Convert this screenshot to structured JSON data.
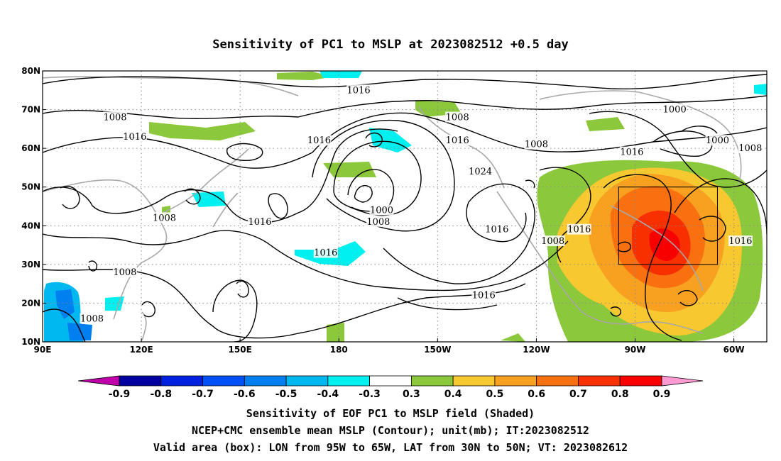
{
  "title": "Sensitivity of PC1 to MSLP at 2023082512 +0.5 day",
  "map": {
    "lon_range": [
      90,
      310
    ],
    "lat_range": [
      10,
      80
    ],
    "lat_ticks": [
      "10N",
      "20N",
      "30N",
      "40N",
      "50N",
      "60N",
      "70N",
      "80N"
    ],
    "lon_ticks": [
      "90E",
      "120E",
      "150E",
      "180",
      "150W",
      "120W",
      "90W",
      "60W"
    ],
    "grid": "dotted",
    "valid_box": {
      "lon_from": "95W",
      "lon_to": "65W",
      "lat_from": "30N",
      "lat_to": "50N"
    }
  },
  "contour_labels": [
    {
      "text": "1016",
      "lon": 186,
      "lat": 75
    },
    {
      "text": "1008",
      "lon": 112,
      "lat": 68
    },
    {
      "text": "1016",
      "lon": 118,
      "lat": 63
    },
    {
      "text": "1008",
      "lon": 216,
      "lat": 68
    },
    {
      "text": "1000",
      "lon": 282,
      "lat": 70
    },
    {
      "text": "1016",
      "lon": 174,
      "lat": 62
    },
    {
      "text": "1016",
      "lon": 216,
      "lat": 62
    },
    {
      "text": "1008",
      "lon": 240,
      "lat": 61
    },
    {
      "text": "1016",
      "lon": 269,
      "lat": 59
    },
    {
      "text": "1000",
      "lon": 295,
      "lat": 62
    },
    {
      "text": "1008",
      "lon": 305,
      "lat": 60
    },
    {
      "text": "1024",
      "lon": 223,
      "lat": 54
    },
    {
      "text": "1000",
      "lon": 193,
      "lat": 44
    },
    {
      "text": "1008",
      "lon": 192,
      "lat": 41
    },
    {
      "text": "1008",
      "lon": 127,
      "lat": 42
    },
    {
      "text": "1016",
      "lon": 156,
      "lat": 41
    },
    {
      "text": "1016",
      "lon": 228,
      "lat": 39
    },
    {
      "text": "1016",
      "lon": 253,
      "lat": 39
    },
    {
      "text": "1008",
      "lon": 245,
      "lat": 36
    },
    {
      "text": "1016",
      "lon": 302,
      "lat": 36
    },
    {
      "text": "1016",
      "lon": 176,
      "lat": 33
    },
    {
      "text": "1008",
      "lon": 115,
      "lat": 28
    },
    {
      "text": "1016",
      "lon": 224,
      "lat": 22
    },
    {
      "text": "1008",
      "lon": 105,
      "lat": 16
    }
  ],
  "colorbar": {
    "labels": [
      "-0.9",
      "-0.8",
      "-0.7",
      "-0.6",
      "-0.5",
      "-0.4",
      "-0.3",
      "0.3",
      "0.4",
      "0.5",
      "0.6",
      "0.7",
      "0.8",
      "0.9"
    ],
    "low_end_color": "#c000a8",
    "high_end_color": "#ff9ad2",
    "colors": [
      "#0000a0",
      "#0020e0",
      "#0050f8",
      "#0080f0",
      "#00b8f0",
      "#00f0f0",
      "#ffffff",
      "#8cc83c",
      "#f8c830",
      "#f8a020",
      "#f87010",
      "#f83000",
      "#f80000"
    ]
  },
  "captions": [
    "Sensitivity of EOF PC1 to MSLP field (Shaded)",
    "NCEP+CMC ensemble mean MSLP (Contour); unit(mb); IT:2023082512",
    "Valid area (box): LON from 95W to 65W, LAT from 30N to 50N; VT: 2023082612"
  ]
}
